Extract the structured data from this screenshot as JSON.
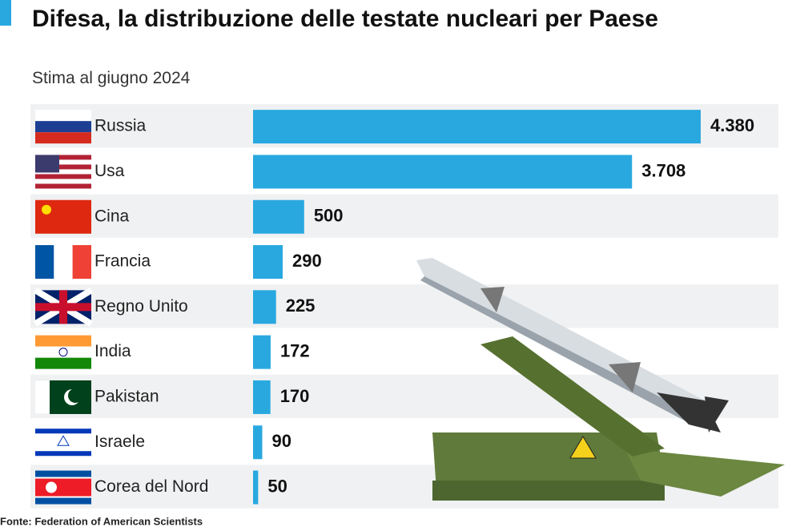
{
  "chart_data": {
    "type": "bar",
    "orientation": "horizontal",
    "title": "Difesa, la distribuzione delle testate nucleari per Paese",
    "subtitle": "Stima al giugno 2024",
    "categories": [
      "Russia",
      "Usa",
      "Cina",
      "Francia",
      "Regno Unito",
      "India",
      "Pakistan",
      "Israele",
      "Corea del Nord"
    ],
    "values": [
      4380,
      3708,
      500,
      290,
      225,
      172,
      170,
      90,
      50
    ],
    "value_labels": [
      "4.380",
      "3.708",
      "500",
      "290",
      "225",
      "172",
      "170",
      "90",
      "50"
    ],
    "color": "#29a8e0",
    "source": "Fonte: Federation of American Scientists"
  }
}
